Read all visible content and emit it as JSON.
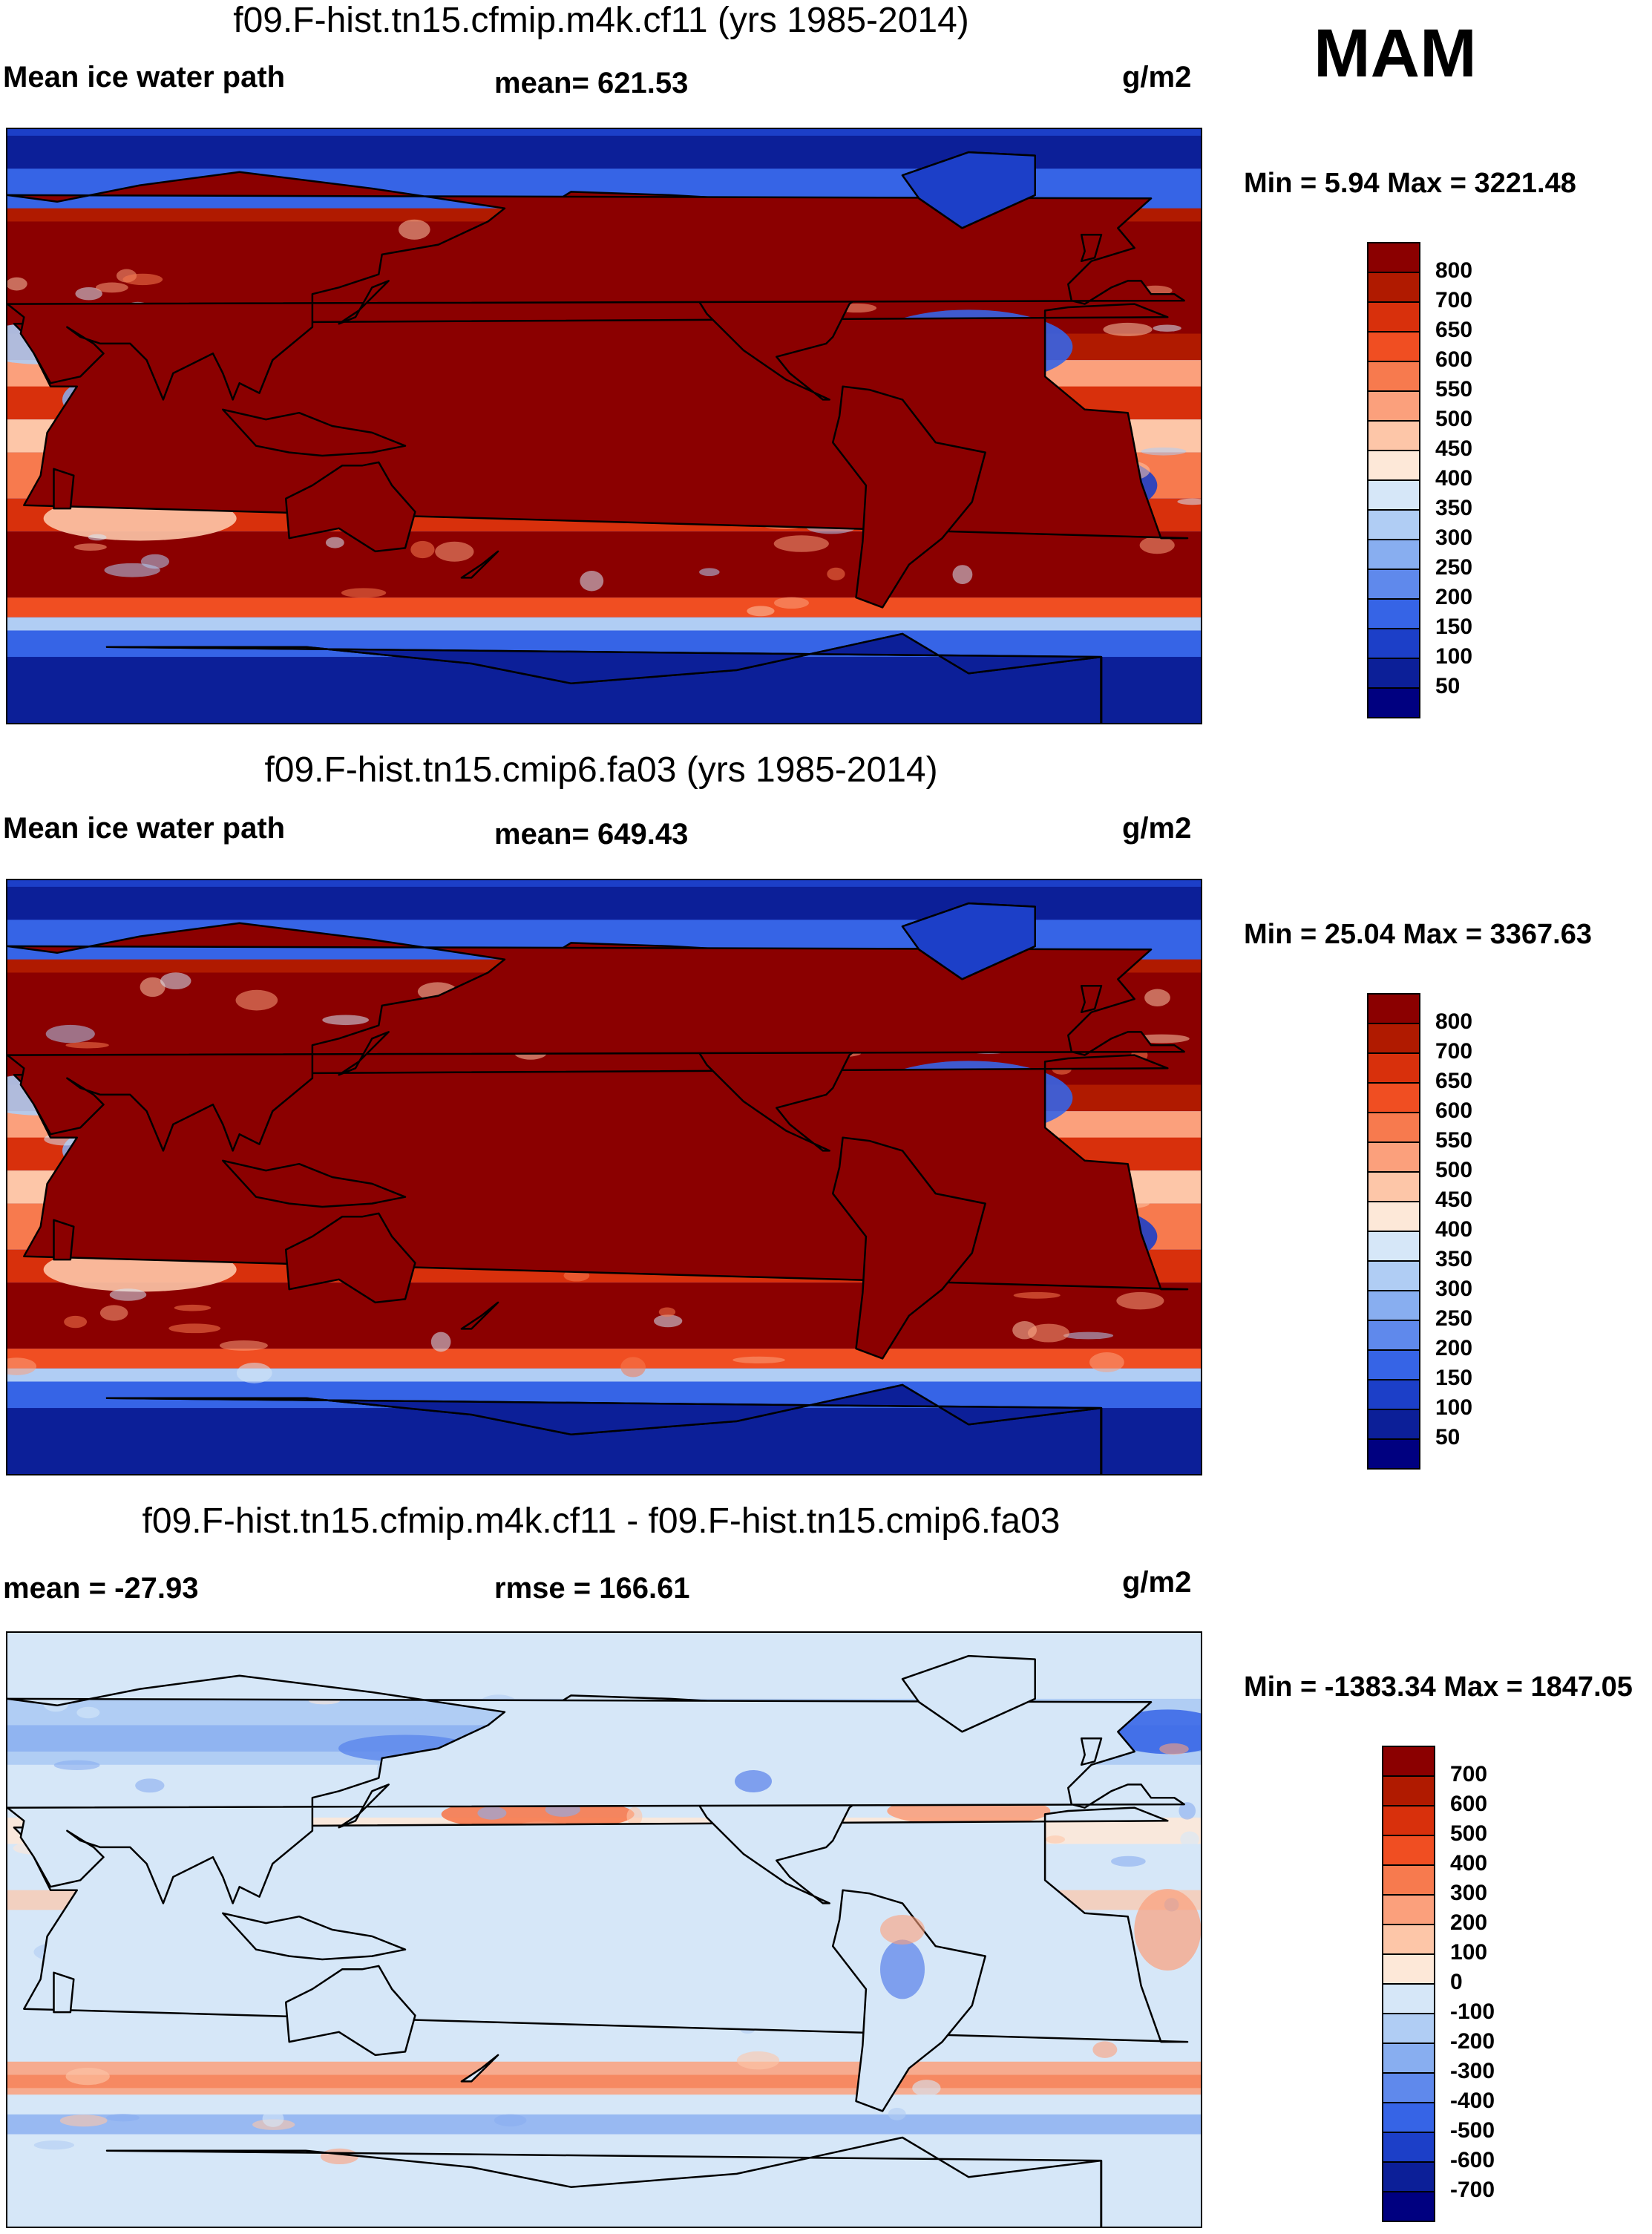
{
  "season": "MAM",
  "panels": [
    {
      "title": "f09.F-hist.tn15.cfmip.m4k.cf11 (yrs 1985-2014)",
      "left_label": "Mean ice water path",
      "center_label": "mean= 621.53",
      "units": "g/m2",
      "minmax": "Min =   5.94 Max = 3221.48",
      "colorbar": {
        "labels": [
          "800",
          "700",
          "650",
          "600",
          "550",
          "500",
          "450",
          "400",
          "350",
          "300",
          "250",
          "200",
          "150",
          "100",
          "50"
        ],
        "colors": [
          "#8b0000",
          "#b01a00",
          "#d8300c",
          "#f04e22",
          "#f77a4e",
          "#fba07c",
          "#fdc6a8",
          "#fde8d8",
          "#d6e7f8",
          "#b0cdf4",
          "#88aef0",
          "#5f89ec",
          "#3664e6",
          "#1c3fc8",
          "#0c1f98",
          "#000080"
        ]
      },
      "map_type": "absolute"
    },
    {
      "title": "f09.F-hist.tn15.cmip6.fa03 (yrs 1985-2014)",
      "left_label": "Mean ice water path",
      "center_label": "mean= 649.43",
      "units": "g/m2",
      "minmax": "Min =  25.04 Max = 3367.63",
      "colorbar": {
        "labels": [
          "800",
          "700",
          "650",
          "600",
          "550",
          "500",
          "450",
          "400",
          "350",
          "300",
          "250",
          "200",
          "150",
          "100",
          "50"
        ],
        "colors": [
          "#8b0000",
          "#b01a00",
          "#d8300c",
          "#f04e22",
          "#f77a4e",
          "#fba07c",
          "#fdc6a8",
          "#fde8d8",
          "#d6e7f8",
          "#b0cdf4",
          "#88aef0",
          "#5f89ec",
          "#3664e6",
          "#1c3fc8",
          "#0c1f98",
          "#000080"
        ]
      },
      "map_type": "absolute"
    },
    {
      "title": "f09.F-hist.tn15.cfmip.m4k.cf11 - f09.F-hist.tn15.cmip6.fa03",
      "left_label": "mean = -27.93",
      "center_label": "rmse = 166.61",
      "units": "g/m2",
      "minmax": "Min = -1383.34 Max = 1847.05",
      "colorbar": {
        "labels": [
          "700",
          "600",
          "500",
          "400",
          "300",
          "200",
          "100",
          "0",
          "-100",
          "-200",
          "-300",
          "-400",
          "-500",
          "-600",
          "-700"
        ],
        "colors": [
          "#8b0000",
          "#b01a00",
          "#d8300c",
          "#f04e22",
          "#f77a4e",
          "#fba07c",
          "#fdc6a8",
          "#fde8d8",
          "#d6e7f8",
          "#b0cdf4",
          "#88aef0",
          "#5f89ec",
          "#3664e6",
          "#1c3fc8",
          "#0c1f98",
          "#000080"
        ]
      },
      "map_type": "difference"
    }
  ]
}
